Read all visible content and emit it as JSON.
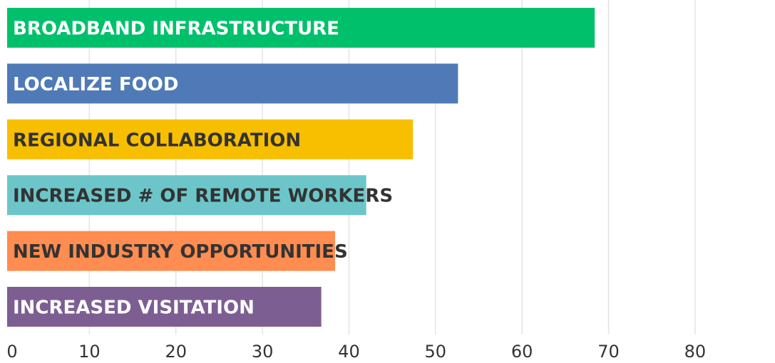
{
  "chart_data": {
    "type": "barh",
    "categories": [
      "BROADBAND INFRASTRUCTURE",
      "LOCALIZE FOOD",
      "REGIONAL COLLABORATION",
      "INCREASED # OF REMOTE WORKERS",
      "NEW INDUSTRY OPPORTUNITIES",
      "INCREASED VISITATION"
    ],
    "values": [
      68.4,
      52.6,
      47.4,
      42,
      38.4,
      36.8
    ],
    "colors": [
      "#00c06b",
      "#4f7ab7",
      "#f8bf00",
      "#6cc6c9",
      "#ff8c50",
      "#7d5e92"
    ],
    "label_colors": [
      "#ffffff",
      "#ffffff",
      "#333333",
      "#333333",
      "#333333",
      "#ffffff"
    ],
    "xlim": [
      0,
      88
    ],
    "xticks": [
      0,
      10,
      20,
      30,
      40,
      50,
      60,
      70,
      80
    ],
    "grid": true
  }
}
